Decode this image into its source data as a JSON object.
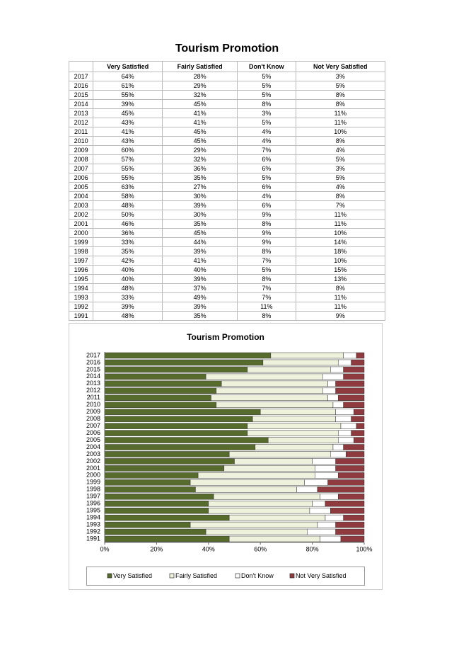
{
  "title": "Tourism Promotion",
  "table": {
    "columns": [
      "Very Satisfied",
      "Fairly Satisfied",
      "Don't Know",
      "Not Very Satisfied"
    ],
    "rows": [
      [
        "2017",
        "64%",
        "28%",
        "5%",
        "3%"
      ],
      [
        "2016",
        "61%",
        "29%",
        "5%",
        "5%"
      ],
      [
        "2015",
        "55%",
        "32%",
        "5%",
        "8%"
      ],
      [
        "2014",
        "39%",
        "45%",
        "8%",
        "8%"
      ],
      [
        "2013",
        "45%",
        "41%",
        "3%",
        "11%"
      ],
      [
        "2012",
        "43%",
        "41%",
        "5%",
        "11%"
      ],
      [
        "2011",
        "41%",
        "45%",
        "4%",
        "10%"
      ],
      [
        "2010",
        "43%",
        "45%",
        "4%",
        "8%"
      ],
      [
        "2009",
        "60%",
        "29%",
        "7%",
        "4%"
      ],
      [
        "2008",
        "57%",
        "32%",
        "6%",
        "5%"
      ],
      [
        "2007",
        "55%",
        "36%",
        "6%",
        "3%"
      ],
      [
        "2006",
        "55%",
        "35%",
        "5%",
        "5%"
      ],
      [
        "2005",
        "63%",
        "27%",
        "6%",
        "4%"
      ],
      [
        "2004",
        "58%",
        "30%",
        "4%",
        "8%"
      ],
      [
        "2003",
        "48%",
        "39%",
        "6%",
        "7%"
      ],
      [
        "2002",
        "50%",
        "30%",
        "9%",
        "11%"
      ],
      [
        "2001",
        "46%",
        "35%",
        "8%",
        "11%"
      ],
      [
        "2000",
        "36%",
        "45%",
        "9%",
        "10%"
      ],
      [
        "1999",
        "33%",
        "44%",
        "9%",
        "14%"
      ],
      [
        "1998",
        "35%",
        "39%",
        "8%",
        "18%"
      ],
      [
        "1997",
        "42%",
        "41%",
        "7%",
        "10%"
      ],
      [
        "1996",
        "40%",
        "40%",
        "5%",
        "15%"
      ],
      [
        "1995",
        "40%",
        "39%",
        "8%",
        "13%"
      ],
      [
        "1994",
        "48%",
        "37%",
        "7%",
        "8%"
      ],
      [
        "1993",
        "33%",
        "49%",
        "7%",
        "11%"
      ],
      [
        "1992",
        "39%",
        "39%",
        "11%",
        "11%"
      ],
      [
        "1991",
        "48%",
        "35%",
        "8%",
        "9%"
      ]
    ]
  },
  "chart_data": {
    "type": "stacked-bar-horizontal",
    "title": "Tourism Promotion",
    "categories": [
      "2017",
      "2016",
      "2015",
      "2014",
      "2013",
      "2012",
      "2011",
      "2010",
      "2009",
      "2008",
      "2007",
      "2006",
      "2005",
      "2004",
      "2003",
      "2002",
      "2001",
      "2000",
      "1999",
      "1998",
      "1997",
      "1996",
      "1995",
      "1994",
      "1993",
      "1992",
      "1991"
    ],
    "series": [
      {
        "name": "Very Satisfied",
        "color": "#566b2c",
        "values": [
          64,
          61,
          55,
          39,
          45,
          43,
          41,
          43,
          60,
          57,
          55,
          55,
          63,
          58,
          48,
          50,
          46,
          36,
          33,
          35,
          42,
          40,
          40,
          48,
          33,
          39,
          48
        ]
      },
      {
        "name": "Fairly Satisfied",
        "color": "#eef2dc",
        "values": [
          28,
          29,
          32,
          45,
          41,
          41,
          45,
          45,
          29,
          32,
          36,
          35,
          27,
          30,
          39,
          30,
          35,
          45,
          44,
          39,
          41,
          40,
          39,
          37,
          49,
          39,
          35
        ]
      },
      {
        "name": "Don't Know",
        "color": "#ffffff",
        "values": [
          5,
          5,
          5,
          8,
          3,
          5,
          4,
          4,
          7,
          6,
          6,
          5,
          6,
          4,
          6,
          9,
          8,
          9,
          9,
          8,
          7,
          5,
          8,
          7,
          7,
          11,
          8
        ]
      },
      {
        "name": "Not Very Satisfied",
        "color": "#8e3a3e",
        "values": [
          3,
          5,
          8,
          8,
          11,
          11,
          10,
          8,
          4,
          5,
          3,
          5,
          4,
          8,
          7,
          11,
          11,
          10,
          14,
          18,
          10,
          15,
          13,
          8,
          11,
          11,
          9
        ]
      }
    ],
    "xlim": [
      0,
      100
    ],
    "xticks": [
      {
        "value": 0,
        "label": "0%"
      },
      {
        "value": 20,
        "label": "20%"
      },
      {
        "value": 40,
        "label": "40%"
      },
      {
        "value": 60,
        "label": "60%"
      },
      {
        "value": 80,
        "label": "80%"
      },
      {
        "value": 100,
        "label": "100%"
      }
    ],
    "legend": "bottom"
  }
}
